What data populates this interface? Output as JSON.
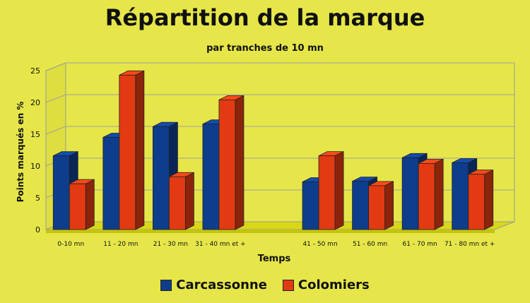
{
  "chart_data": {
    "type": "bar",
    "title": "Répartition de la marque",
    "subtitle": "par tranches de 10 mn",
    "xlabel": "Temps",
    "ylabel": "Points marqués en %",
    "ylim": [
      0,
      25
    ],
    "yticks": [
      0,
      5,
      10,
      15,
      20,
      25
    ],
    "grid": true,
    "legend_position": "bottom",
    "categories": [
      "0-10 mn",
      "11 - 20 mn",
      "21 - 30 mn",
      "31 - 40 mn et +",
      "",
      "41 - 50 mn",
      "51 - 60 mn",
      "61 - 70 mn",
      "71 - 80 mn et +"
    ],
    "series": [
      {
        "name": "Carcassonne",
        "color": "#0e3d8c",
        "values": [
          11.6,
          14.5,
          16.2,
          16.6,
          null,
          7.5,
          7.6,
          11.3,
          10.5
        ]
      },
      {
        "name": "Colomiers",
        "color": "#e23a12",
        "values": [
          7.2,
          24.3,
          8.3,
          20.4,
          null,
          11.6,
          6.9,
          10.4,
          8.7
        ]
      }
    ]
  }
}
